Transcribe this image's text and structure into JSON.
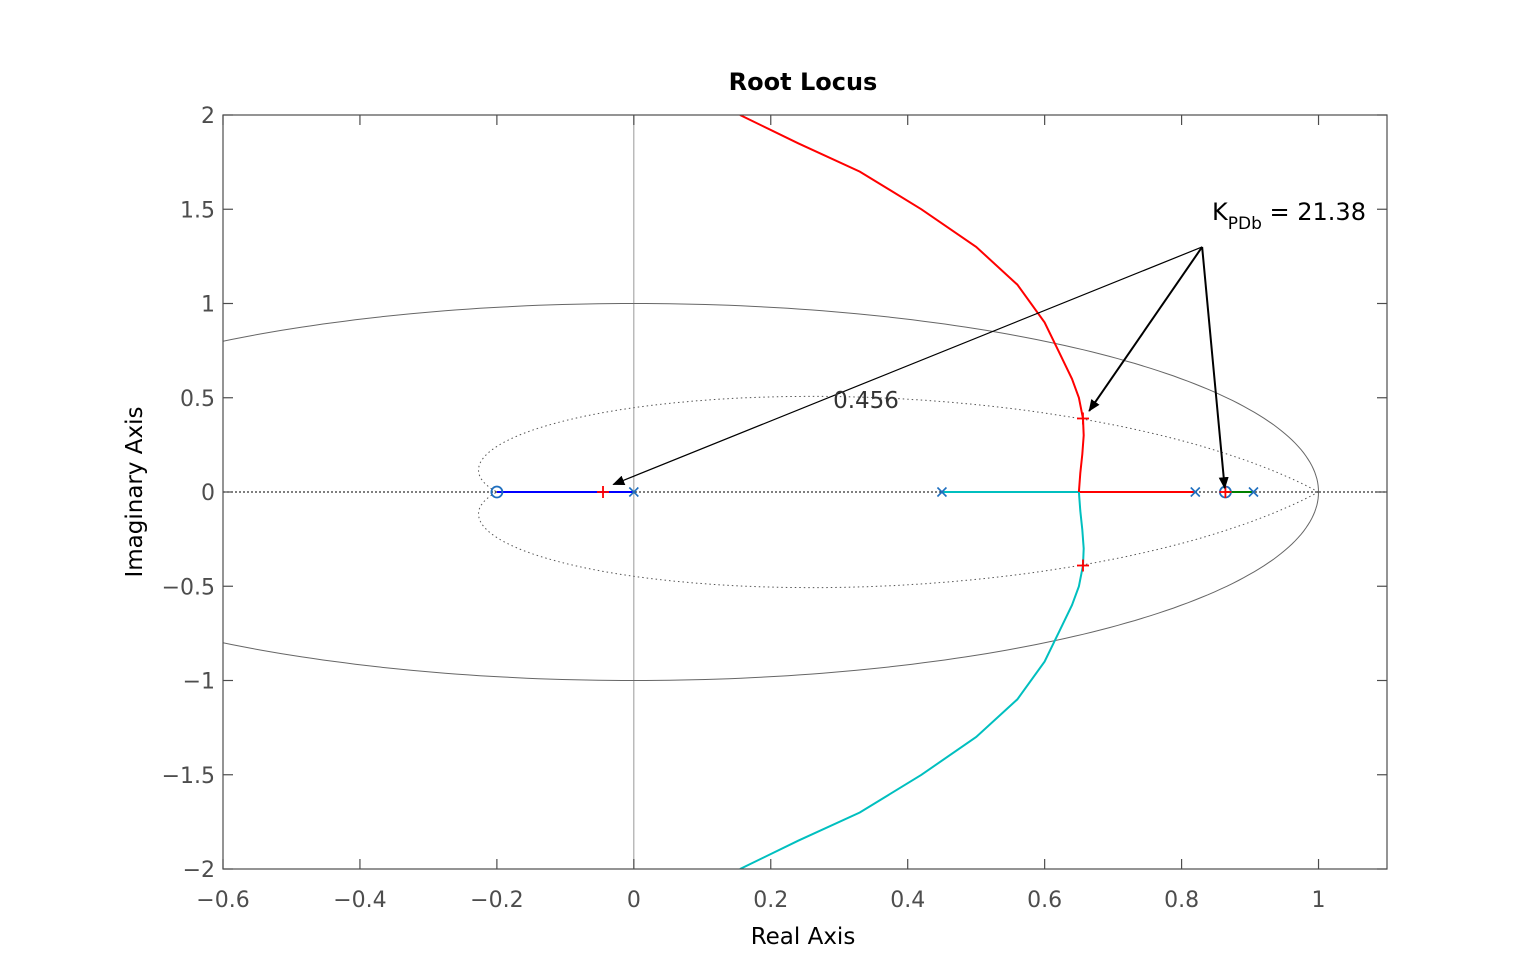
{
  "chart_data": {
    "type": "line",
    "title": "Root Locus",
    "xlabel": "Real Axis",
    "ylabel": "Imaginary Axis",
    "xlim": [
      -0.6,
      1.1
    ],
    "ylim": [
      -2,
      2
    ],
    "xticks": [
      -0.6,
      -0.4,
      -0.2,
      0,
      0.2,
      0.4,
      0.6,
      0.8,
      1
    ],
    "xtick_labels": [
      "−0.6",
      "−0.4",
      "−0.2",
      "0",
      "0.2",
      "0.4",
      "0.6",
      "0.8",
      "1"
    ],
    "yticks": [
      -2,
      -1.5,
      -1,
      -0.5,
      0,
      0.5,
      1,
      1.5,
      2
    ],
    "ytick_labels": [
      "−2",
      "−1.5",
      "−1",
      "−0.5",
      "0",
      "0.5",
      "1",
      "1.5",
      "2"
    ],
    "grid": "z-plane unit circle and damping ratio contour",
    "colors": {
      "axes": "#4d4d4d",
      "blue_branch": "#0000ff",
      "red_branch": "#ff0000",
      "cyan_branch": "#00bfbf",
      "green_branch": "#008000",
      "markers": "#1f6fbf",
      "gain_marker": "#ff0000"
    },
    "series": [
      {
        "color": "#0000ff",
        "points": [
          [
            -0.2,
            0
          ],
          [
            0.0,
            0
          ]
        ]
      },
      {
        "color": "#00bfbf",
        "points": [
          [
            0.45,
            0
          ],
          [
            0.65,
            0
          ]
        ]
      },
      {
        "color": "#ff0000",
        "points": [
          [
            0.82,
            0
          ],
          [
            0.65,
            0
          ]
        ]
      },
      {
        "color": "#ff0000",
        "points": [
          [
            0.65,
            0
          ],
          [
            0.652,
            0.1
          ],
          [
            0.655,
            0.2
          ],
          [
            0.657,
            0.3
          ],
          [
            0.656,
            0.39
          ],
          [
            0.65,
            0.5
          ],
          [
            0.64,
            0.6
          ],
          [
            0.62,
            0.75
          ],
          [
            0.6,
            0.9
          ],
          [
            0.56,
            1.1
          ],
          [
            0.5,
            1.3
          ],
          [
            0.42,
            1.5
          ],
          [
            0.33,
            1.7
          ],
          [
            0.24,
            1.85
          ],
          [
            0.155,
            2.0
          ]
        ]
      },
      {
        "color": "#00bfbf",
        "points": [
          [
            0.65,
            0
          ],
          [
            0.652,
            -0.1
          ],
          [
            0.655,
            -0.2
          ],
          [
            0.657,
            -0.3
          ],
          [
            0.656,
            -0.39
          ],
          [
            0.65,
            -0.5
          ],
          [
            0.64,
            -0.6
          ],
          [
            0.62,
            -0.75
          ],
          [
            0.6,
            -0.9
          ],
          [
            0.56,
            -1.1
          ],
          [
            0.5,
            -1.3
          ],
          [
            0.42,
            -1.5
          ],
          [
            0.33,
            -1.7
          ],
          [
            0.24,
            -1.85
          ],
          [
            0.155,
            -2.0
          ]
        ]
      },
      {
        "color": "#008000",
        "points": [
          [
            0.905,
            0
          ],
          [
            0.864,
            0
          ]
        ]
      }
    ],
    "poles": [
      [
        0.0,
        0
      ],
      [
        0.45,
        0
      ],
      [
        0.82,
        0
      ],
      [
        0.905,
        0
      ]
    ],
    "zeros": [
      [
        -0.2,
        0
      ],
      [
        0.864,
        0
      ]
    ],
    "gain_markers": [
      [
        -0.045,
        0
      ],
      [
        0.656,
        0.39
      ],
      [
        0.656,
        -0.39
      ],
      [
        0.864,
        0
      ]
    ],
    "damping_ratio_label": "0.456",
    "annotation": {
      "label_main": "K",
      "label_sub": "PDb",
      "label_value": " = 21.38",
      "value": 21.38,
      "arrow_origin": [
        0.83,
        1.3
      ],
      "arrow_targets": [
        [
          -0.03,
          0.04
        ],
        [
          0.665,
          0.43
        ],
        [
          0.863,
          0.02
        ]
      ]
    }
  }
}
